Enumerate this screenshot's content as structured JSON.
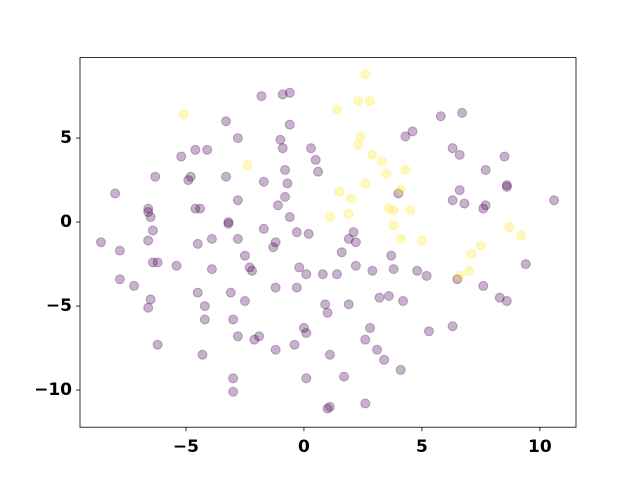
{
  "chart_data": {
    "type": "scatter",
    "alpha": 0.3,
    "xlim": [
      -9.49,
      11.53
    ],
    "ylim": [
      -12.21,
      9.79
    ],
    "xticks": [
      {
        "value": -5,
        "label": "−5"
      },
      0,
      5,
      10
    ],
    "yticks": [
      {
        "value": -10,
        "label": "−10"
      },
      {
        "value": -5,
        "label": "−5"
      },
      0,
      5
    ],
    "series": [
      {
        "color": "#440154",
        "x": [
          -8.6,
          -8.0,
          -7.8,
          -7.8,
          -7.2,
          -6.5,
          -6.6,
          -6.6,
          -6.6,
          -6.4,
          -6.3,
          -6.4,
          -6.2,
          -6.5,
          -6.6,
          -6.2,
          -5.4,
          -5.2,
          -4.9,
          -4.8,
          -4.6,
          -4.6,
          -4.5,
          -4.5,
          -4.4,
          -4.1,
          -4.2,
          -4.2,
          -4.3,
          -3.9,
          -3.9,
          -3.3,
          -3.3,
          -3.2,
          -3.2,
          -3.1,
          -3.0,
          -3.0,
          -3.0,
          -2.8,
          -2.8,
          -2.8,
          -2.8,
          -2.5,
          -2.5,
          -2.3,
          -2.2,
          -2.1,
          -1.9,
          -1.8,
          -1.7,
          -1.7,
          -1.3,
          -1.2,
          -1.1,
          -1.2,
          -1.2,
          -0.9,
          -0.9,
          -1.0,
          -0.8,
          -0.8,
          -0.6,
          -0.7,
          -0.6,
          -0.6,
          -0.4,
          -0.3,
          -0.3,
          -0.2,
          0.0,
          0.1,
          0.1,
          0.2,
          0.3,
          0.5,
          0.6,
          0.1,
          0.8,
          0.9,
          1.0,
          1.1,
          1.0,
          1.1,
          1.4,
          1.6,
          1.9,
          1.7,
          1.9,
          2.1,
          2.2,
          2.2,
          2.6,
          2.6,
          2.8,
          2.9,
          3.1,
          3.2,
          3.4,
          3.6,
          3.8,
          3.7,
          4.0,
          4.1,
          4.2,
          4.3,
          4.6,
          4.8,
          5.2,
          5.3,
          5.8,
          6.3,
          6.3,
          6.3,
          6.5,
          6.6,
          6.6,
          6.7,
          6.8,
          7.6,
          7.6,
          7.7,
          7.7,
          8.3,
          8.5,
          8.6,
          8.6,
          8.6,
          9.4,
          10.6
        ],
        "y": [
          -1.2,
          1.7,
          -1.7,
          -3.4,
          -3.8,
          0.3,
          0.8,
          0.6,
          -1.1,
          -0.5,
          2.7,
          -2.4,
          -2.4,
          -4.6,
          -5.1,
          -7.3,
          -2.6,
          3.9,
          2.5,
          2.7,
          0.8,
          4.3,
          -1.3,
          -4.2,
          0.8,
          4.3,
          -5.0,
          -5.8,
          -7.9,
          -1.0,
          -2.8,
          6.0,
          2.7,
          -0.1,
          0.0,
          -4.2,
          -5.8,
          -9.3,
          -10.1,
          5.0,
          1.3,
          -1.0,
          -6.8,
          -2.0,
          -4.7,
          -2.7,
          -2.9,
          -7.0,
          -6.8,
          7.5,
          -0.4,
          2.4,
          -1.5,
          -1.2,
          1.0,
          -3.9,
          -7.6,
          7.6,
          4.4,
          4.9,
          3.1,
          1.5,
          7.7,
          2.3,
          5.8,
          0.3,
          -7.3,
          -0.6,
          -3.9,
          -2.7,
          -6.3,
          -6.6,
          -9.3,
          -0.7,
          4.4,
          3.7,
          3.0,
          -3.1,
          -3.1,
          -4.9,
          -5.4,
          -7.9,
          -11.1,
          -11.0,
          -3.1,
          -1.8,
          -1.0,
          -9.2,
          -4.9,
          -0.6,
          -1.2,
          -2.6,
          -7.0,
          -10.8,
          -6.3,
          -2.9,
          -7.6,
          -4.5,
          -8.2,
          -4.4,
          -2.8,
          -2.0,
          1.7,
          -8.8,
          -4.7,
          5.1,
          5.4,
          -2.9,
          -3.2,
          -6.5,
          6.3,
          4.4,
          1.3,
          -6.2,
          -3.4,
          4.0,
          1.9,
          6.5,
          1.1,
          0.8,
          -3.8,
          3.1,
          1.0,
          -4.5,
          3.9,
          2.2,
          2.1,
          -4.7,
          -2.5,
          1.3
        ]
      },
      {
        "color": "#fde725",
        "x": [
          -5.1,
          -2.4,
          1.4,
          1.1,
          1.5,
          1.9,
          2.0,
          2.3,
          2.3,
          2.4,
          2.6,
          2.6,
          2.8,
          2.9,
          3.3,
          3.5,
          3.6,
          3.8,
          3.8,
          4.1,
          4.1,
          4.3,
          4.5,
          5.0,
          6.6,
          7.0,
          7.1,
          7.5,
          8.7,
          9.2
        ],
        "y": [
          6.4,
          3.4,
          6.7,
          0.3,
          1.8,
          0.5,
          1.4,
          4.6,
          7.2,
          5.1,
          2.3,
          8.8,
          7.2,
          4.0,
          3.6,
          2.9,
          0.8,
          -0.2,
          0.7,
          1.9,
          -1.0,
          3.1,
          0.7,
          -1.1,
          -3.2,
          -2.9,
          -1.9,
          -1.4,
          -0.3,
          -0.8
        ]
      }
    ]
  }
}
